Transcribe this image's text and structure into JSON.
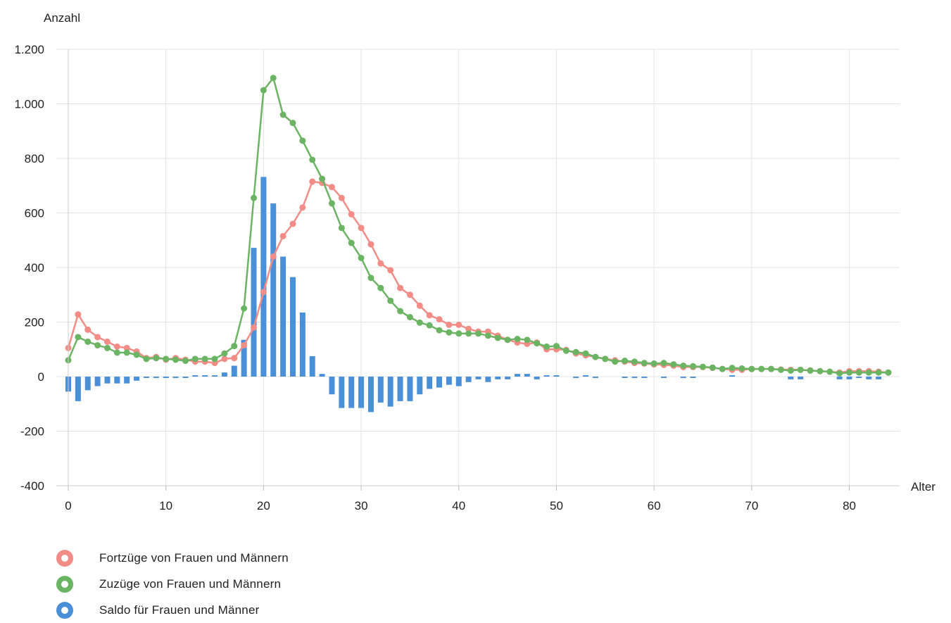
{
  "chart_data": {
    "type": "line",
    "xlabel": "Alter",
    "ylabel": "Anzahl",
    "xlim": [
      0,
      84
    ],
    "ylim": [
      -400,
      1200
    ],
    "y_ticks": [
      -400,
      -200,
      0,
      200,
      400,
      600,
      800,
      1000,
      1200
    ],
    "y_tick_labels": [
      "-400",
      "-200",
      "0",
      "200",
      "400",
      "600",
      "800",
      "1.000",
      "1.200"
    ],
    "x_ticks": [
      0,
      10,
      20,
      30,
      40,
      50,
      60,
      70,
      80
    ],
    "x_tick_labels": [
      "0",
      "10",
      "20",
      "30",
      "40",
      "50",
      "60",
      "70",
      "80"
    ],
    "grid": true,
    "legend_position": "bottom-left",
    "x": [
      0,
      1,
      2,
      3,
      4,
      5,
      6,
      7,
      8,
      9,
      10,
      11,
      12,
      13,
      14,
      15,
      16,
      17,
      18,
      19,
      20,
      21,
      22,
      23,
      24,
      25,
      26,
      27,
      28,
      29,
      30,
      31,
      32,
      33,
      34,
      35,
      36,
      37,
      38,
      39,
      40,
      41,
      42,
      43,
      44,
      45,
      46,
      47,
      48,
      49,
      50,
      51,
      52,
      53,
      54,
      55,
      56,
      57,
      58,
      59,
      60,
      61,
      62,
      63,
      64,
      65,
      66,
      67,
      68,
      69,
      70,
      71,
      72,
      73,
      74,
      75,
      76,
      77,
      78,
      79,
      80,
      81,
      82,
      83,
      84
    ],
    "series": [
      {
        "name": "Fortzüge von Frauen und Männern",
        "kind": "line",
        "color": "#f28c87",
        "values": [
          105,
          228,
          172,
          145,
          128,
          110,
          105,
          92,
          68,
          72,
          62,
          68,
          62,
          55,
          55,
          50,
          65,
          68,
          115,
          180,
          310,
          440,
          515,
          560,
          620,
          715,
          710,
          695,
          655,
          595,
          545,
          485,
          415,
          390,
          325,
          300,
          260,
          225,
          210,
          190,
          190,
          175,
          165,
          165,
          150,
          135,
          125,
          120,
          125,
          100,
          100,
          98,
          85,
          78,
          72,
          65,
          60,
          55,
          50,
          48,
          45,
          43,
          40,
          35,
          35,
          35,
          32,
          28,
          25,
          25,
          28,
          28,
          28,
          26,
          25,
          25,
          23,
          20,
          18,
          15,
          20,
          20,
          20,
          18,
          15
        ]
      },
      {
        "name": "Zuzüge von Frauen und Männern",
        "kind": "line",
        "color": "#6bb463",
        "values": [
          60,
          145,
          128,
          115,
          105,
          88,
          88,
          80,
          65,
          68,
          65,
          62,
          58,
          65,
          65,
          65,
          85,
          112,
          250,
          655,
          1050,
          1095,
          960,
          930,
          865,
          795,
          725,
          635,
          545,
          490,
          435,
          362,
          325,
          278,
          240,
          218,
          198,
          188,
          170,
          162,
          158,
          158,
          158,
          150,
          142,
          135,
          138,
          135,
          122,
          110,
          112,
          95,
          90,
          85,
          72,
          65,
          55,
          58,
          55,
          50,
          48,
          50,
          45,
          40,
          38,
          36,
          33,
          28,
          32,
          30,
          28,
          28,
          28,
          25,
          22,
          25,
          22,
          20,
          18,
          12,
          15,
          15,
          15,
          15,
          15
        ]
      },
      {
        "name": "Saldo für Frauen und Männer",
        "kind": "bar",
        "color": "#4a90d9",
        "values": [
          -55,
          -90,
          -50,
          -35,
          -25,
          -25,
          -25,
          -15,
          -5,
          -5,
          -5,
          -5,
          -5,
          5,
          5,
          5,
          15,
          40,
          135,
          472,
          732,
          635,
          440,
          365,
          235,
          75,
          10,
          -65,
          -115,
          -115,
          -115,
          -130,
          -95,
          -110,
          -90,
          -90,
          -65,
          -45,
          -40,
          -30,
          -35,
          -20,
          -10,
          -20,
          -10,
          -10,
          10,
          10,
          -10,
          5,
          5,
          0,
          -5,
          5,
          -5,
          0,
          0,
          -5,
          -5,
          -5,
          0,
          -5,
          0,
          -5,
          -5,
          0,
          0,
          0,
          5,
          0,
          0,
          0,
          0,
          0,
          -10,
          -10,
          0,
          0,
          0,
          -10,
          -10,
          -5,
          -10,
          -10,
          0
        ]
      }
    ]
  }
}
